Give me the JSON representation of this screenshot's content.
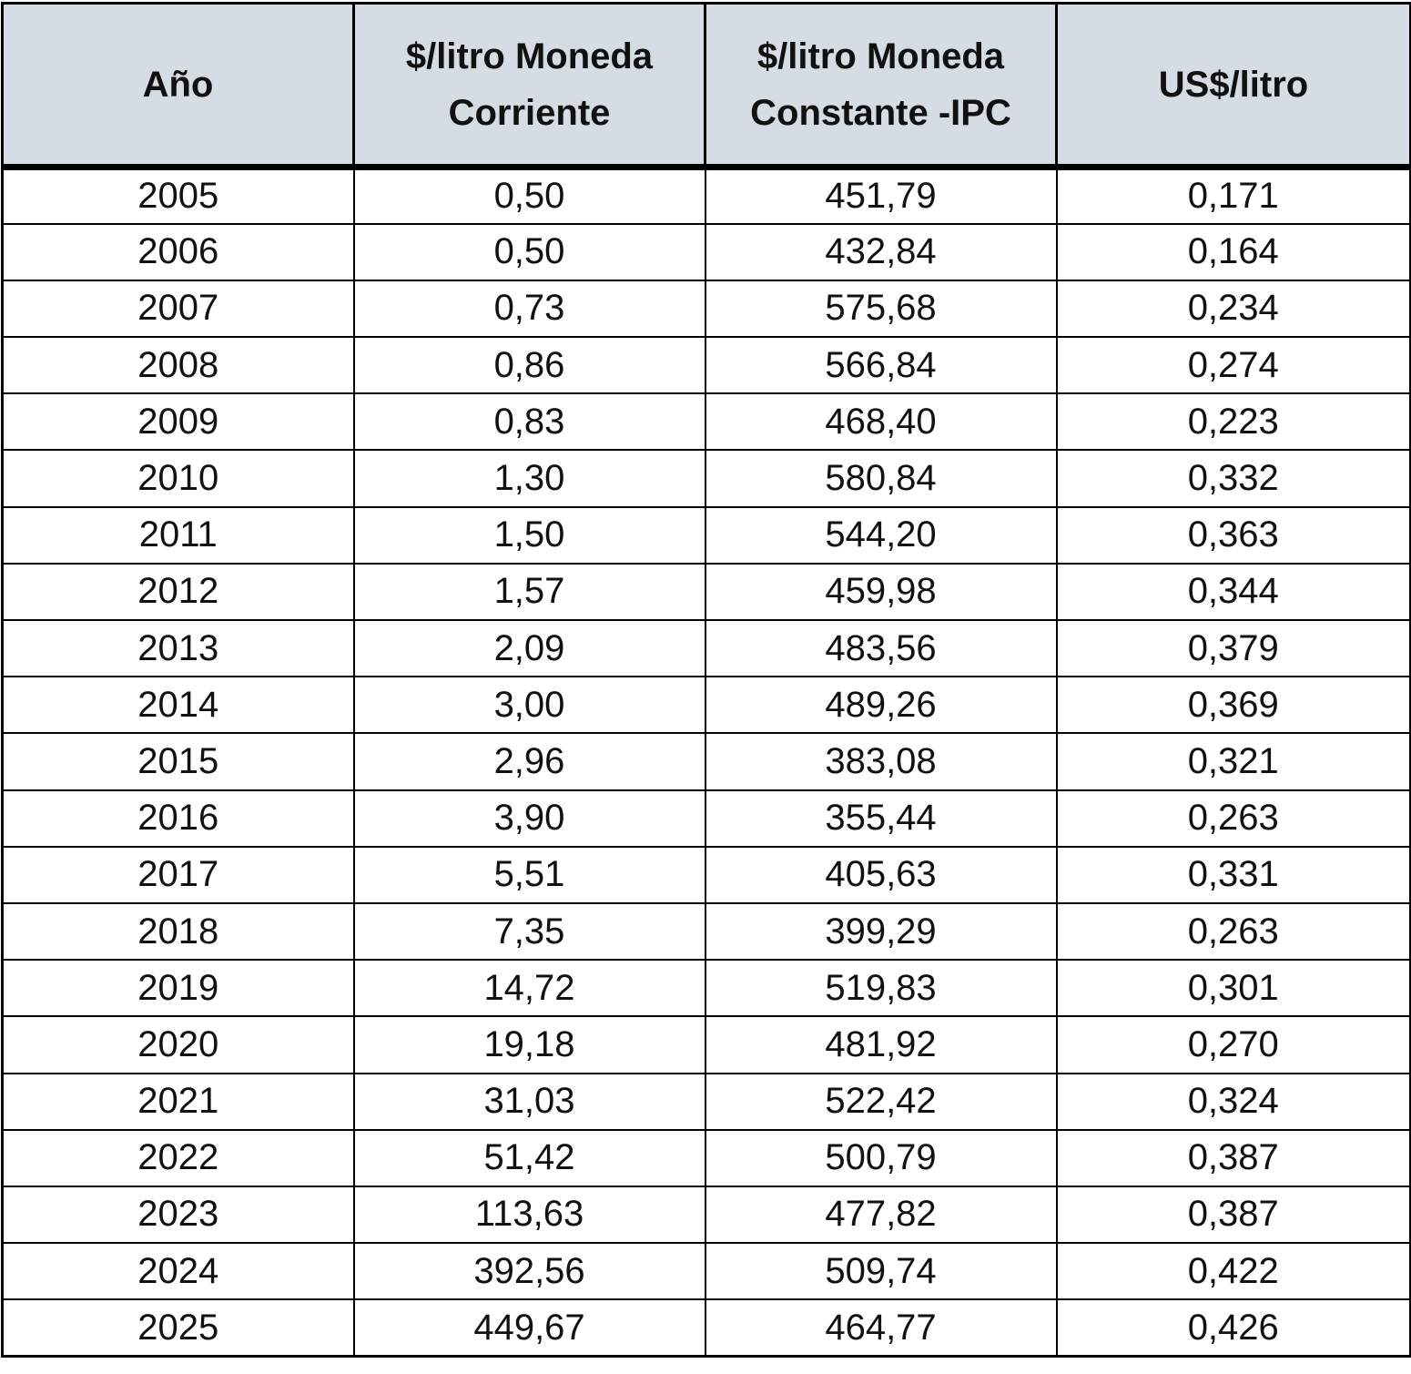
{
  "table": {
    "headers": [
      "Año",
      "$/litro Moneda Corriente",
      "$/litro Moneda Constante -IPC",
      "US$/litro"
    ],
    "rows": [
      [
        "2005",
        "0,50",
        "451,79",
        "0,171"
      ],
      [
        "2006",
        "0,50",
        "432,84",
        "0,164"
      ],
      [
        "2007",
        "0,73",
        "575,68",
        "0,234"
      ],
      [
        "2008",
        "0,86",
        "566,84",
        "0,274"
      ],
      [
        "2009",
        "0,83",
        "468,40",
        "0,223"
      ],
      [
        "2010",
        "1,30",
        "580,84",
        "0,332"
      ],
      [
        "2011",
        "1,50",
        "544,20",
        "0,363"
      ],
      [
        "2012",
        "1,57",
        "459,98",
        "0,344"
      ],
      [
        "2013",
        "2,09",
        "483,56",
        "0,379"
      ],
      [
        "2014",
        "3,00",
        "489,26",
        "0,369"
      ],
      [
        "2015",
        "2,96",
        "383,08",
        "0,321"
      ],
      [
        "2016",
        "3,90",
        "355,44",
        "0,263"
      ],
      [
        "2017",
        "5,51",
        "405,63",
        "0,331"
      ],
      [
        "2018",
        "7,35",
        "399,29",
        "0,263"
      ],
      [
        "2019",
        "14,72",
        "519,83",
        "0,301"
      ],
      [
        "2020",
        "19,18",
        "481,92",
        "0,270"
      ],
      [
        "2021",
        "31,03",
        "522,42",
        "0,324"
      ],
      [
        "2022",
        "51,42",
        "500,79",
        "0,387"
      ],
      [
        "2023",
        "113,63",
        "477,82",
        "0,387"
      ],
      [
        "2024",
        "392,56",
        "509,74",
        "0,422"
      ],
      [
        "2025",
        "449,67",
        "464,77",
        "0,426"
      ]
    ]
  },
  "colors": {
    "header_bg": "#d6dce4",
    "border": "#000000",
    "text": "#111111"
  }
}
